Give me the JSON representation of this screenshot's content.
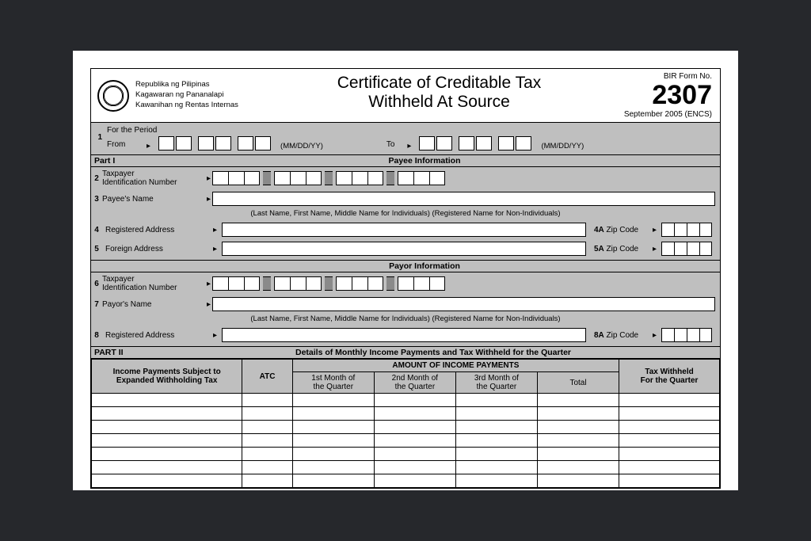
{
  "colors": {
    "page_bg": "#26282c",
    "form_bg": "#ffffff",
    "gray_fill": "#bfbfbf",
    "border": "#000000"
  },
  "header": {
    "gov_line1": "Republika ng Pilipinas",
    "gov_line2": "Kagawaran ng Pananalapi",
    "gov_line3": "Kawanihan ng Rentas Internas",
    "title_line1": "Certificate of Creditable Tax",
    "title_line2": "Withheld At Source",
    "form_no_label": "BIR Form No.",
    "form_no": "2307",
    "revision": "September 2005  (ENCS)"
  },
  "period": {
    "num": "1",
    "label": "For the Period",
    "from_label": "From",
    "to_label": "To",
    "format_hint": "(MM/DD/YY)"
  },
  "part1": {
    "label": "Part I",
    "payee_title": "Payee  Information",
    "payor_title": "Payor  Information",
    "fields": {
      "tin_num": "2",
      "tin_label": "Taxpayer\nIdentification Number",
      "payee_name_num": "3",
      "payee_name_label": "Payee's Name",
      "name_hint": "(Last Name, First Name, Middle Name for Individuals) (Registered Name for Non-Individuals)",
      "reg_addr_num": "4",
      "reg_addr_label": "Registered Address",
      "reg_zip_label": "4A",
      "zip_text": "Zip Code",
      "for_addr_num": "5",
      "for_addr_label": "Foreign Address",
      "for_zip_label": "5A",
      "payor_tin_num": "6",
      "payor_name_num": "7",
      "payor_name_label": "Payor's Name",
      "payor_addr_num": "8",
      "payor_zip_label": "8A"
    }
  },
  "part2": {
    "label": "PART II",
    "title": "Details of Monthly Income Payments and Tax Withheld for the Quarter",
    "columns": {
      "col1": "Income Payments Subject to\nExpanded Withholding Tax",
      "col2": "ATC",
      "amount_header": "AMOUNT OF INCOME PAYMENTS",
      "m1": "1st Month of\nthe Quarter",
      "m2": "2nd Month of\nthe Quarter",
      "m3": "3rd Month of\nthe Quarter",
      "total": "Total",
      "tax": "Tax Withheld\nFor the Quarter"
    },
    "blank_rows": 7,
    "col_widths_pct": [
      24,
      8,
      13,
      13,
      13,
      13,
      16
    ]
  }
}
